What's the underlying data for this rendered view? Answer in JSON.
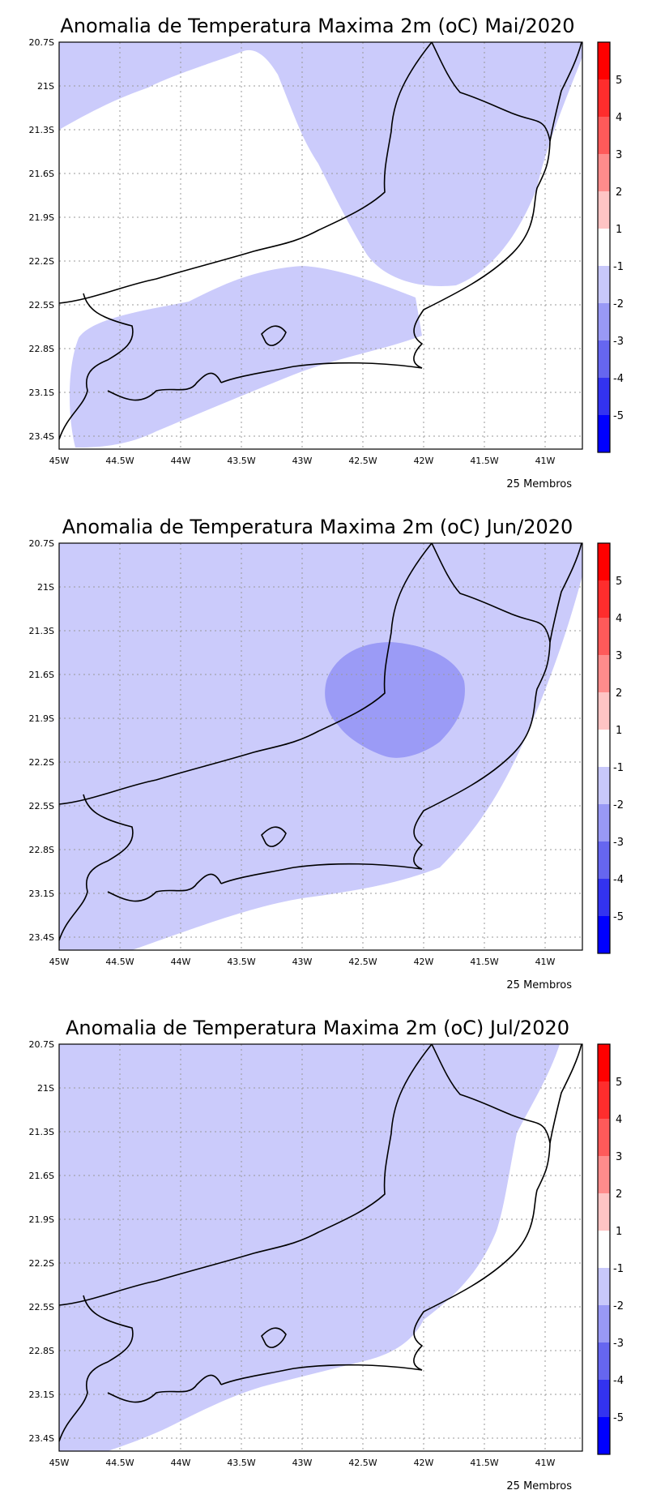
{
  "panels": [
    {
      "title": "Anomalia de Temperatura Maxima 2m (oC) Mai/2020",
      "members": "25 Membros",
      "month": "Mai"
    },
    {
      "title": "Anomalia de Temperatura Maxima 2m (oC) Jun/2020",
      "members": "25 Membros",
      "month": "Jun"
    },
    {
      "title": "Anomalia de Temperatura Maxima 2m (oC) Jul/2020",
      "members": "25 Membros",
      "month": "Jul"
    }
  ],
  "axes": {
    "lat_labels": [
      "20.7S",
      "21S",
      "21.3S",
      "21.6S",
      "21.9S",
      "22.2S",
      "22.5S",
      "22.8S",
      "23.1S",
      "23.4S"
    ],
    "lon_labels": [
      "45W",
      "44.5W",
      "44W",
      "43.5W",
      "43W",
      "42.5W",
      "42W",
      "41.5W",
      "41W"
    ]
  },
  "colorbar": {
    "labels": [
      "5",
      "4",
      "3",
      "2",
      "1",
      "-1",
      "-2",
      "-3",
      "-4",
      "-5"
    ],
    "colors": [
      "#ff0000",
      "#ff2d2d",
      "#ff5a5a",
      "#ff8c8c",
      "#ffc4c4",
      "#ffffff",
      "#c8c8fa",
      "#9999f5",
      "#6666f0",
      "#3333f0",
      "#0000ff"
    ]
  },
  "map_colors": {
    "light_blue": "#cbcbfb",
    "medium_blue": "#9b9bf6",
    "coast": "#000000"
  }
}
